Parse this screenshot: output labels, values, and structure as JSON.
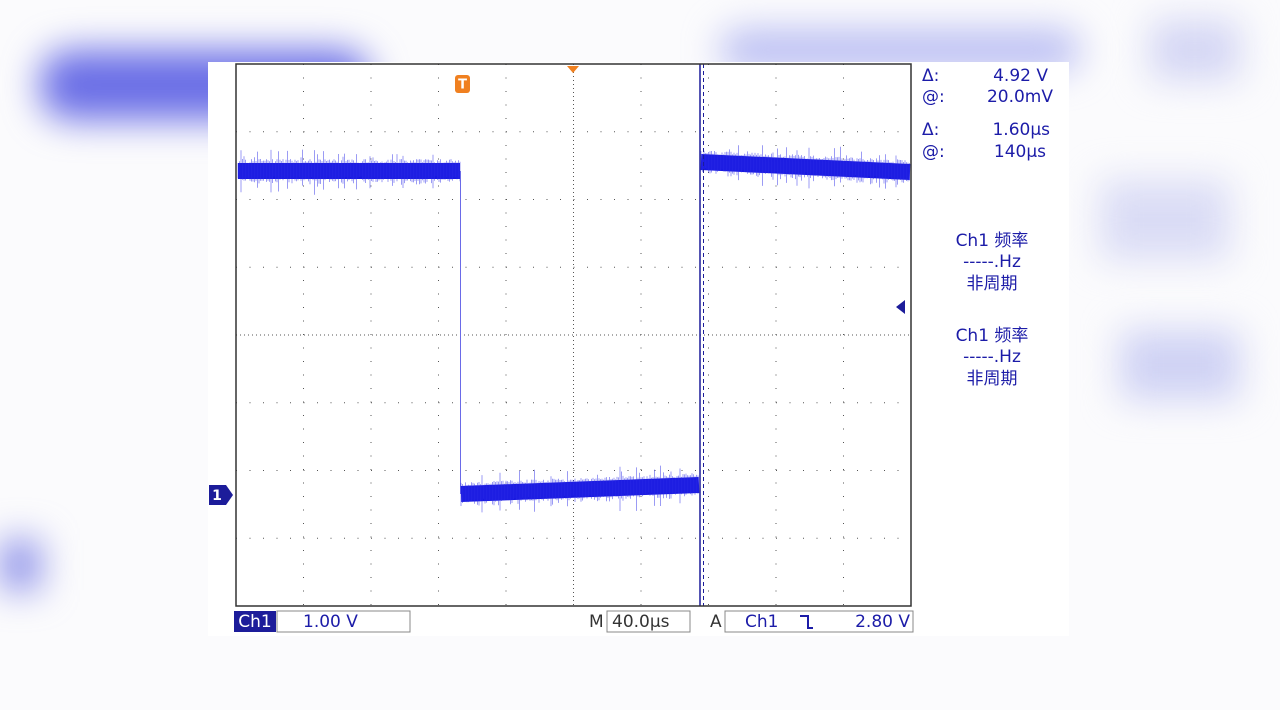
{
  "cursor_readout": {
    "amplitude": {
      "delta_label": "Δ:",
      "delta": "4.92 V",
      "at_label": "@:",
      "at": "20.0mV"
    },
    "time": {
      "delta_label": "Δ:",
      "delta": "1.60µs",
      "at_label": "@:",
      "at": "140µs"
    }
  },
  "measurements": [
    {
      "source": "Ch1 频率",
      "value": "-----.Hz",
      "status": "非周期"
    },
    {
      "source": "Ch1 频率",
      "value": "-----.Hz",
      "status": "非周期"
    }
  ],
  "status_bar": {
    "channel": "Ch1",
    "volts_per_div": "1.00 V",
    "timebase_label": "M",
    "timebase": "40.0µs",
    "trigger_mode": "A",
    "trigger_source": "Ch1",
    "trigger_level": "2.80 V"
  },
  "markers": {
    "trigger": "T",
    "channel": "1"
  }
}
